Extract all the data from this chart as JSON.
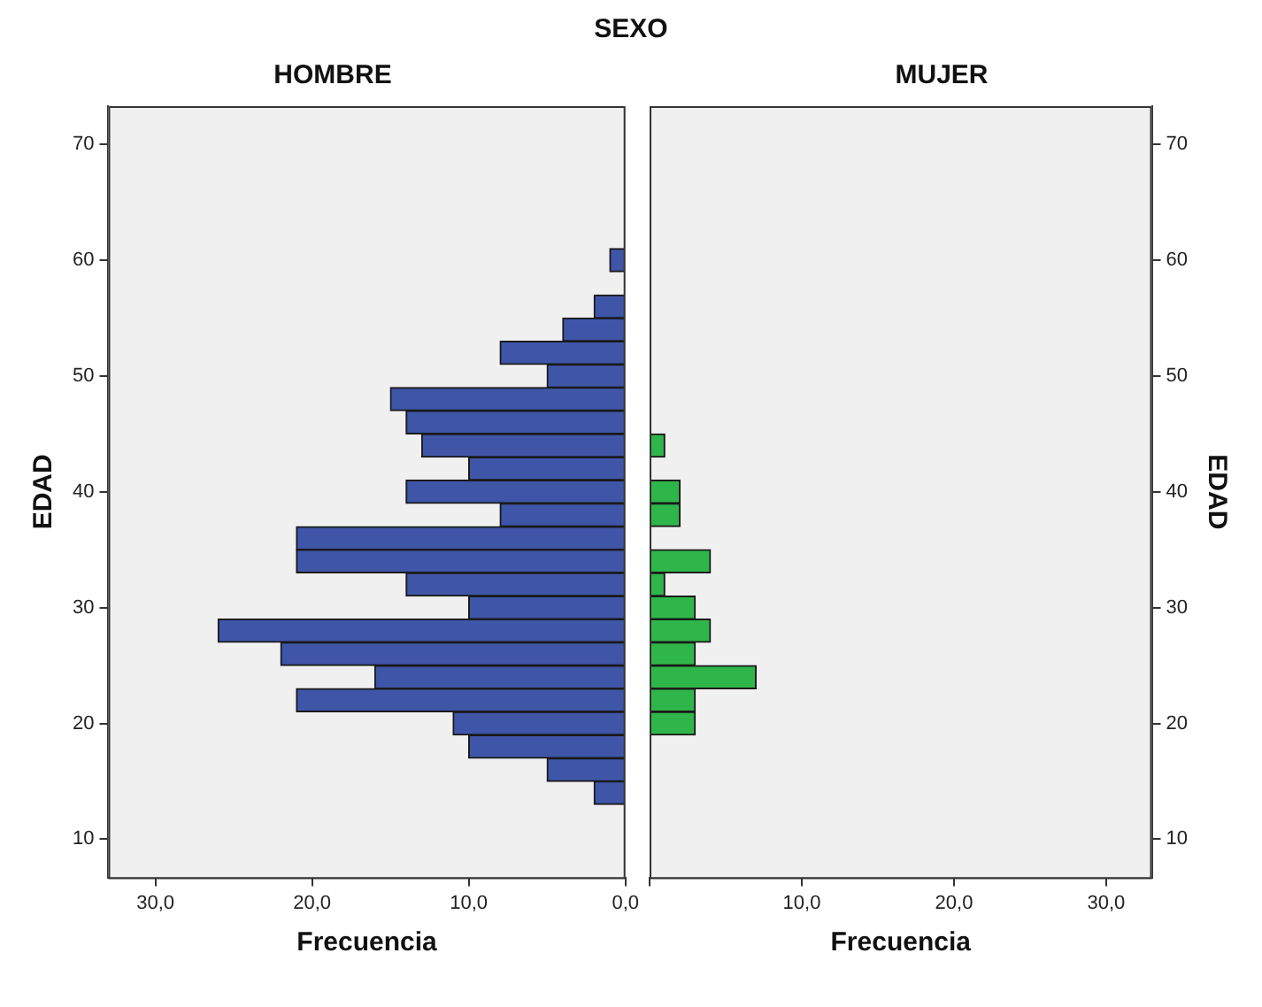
{
  "chart_data": [
    {
      "type": "histogram",
      "title": "HOMBRE",
      "annotations": [
        "SEXO"
      ],
      "orientation": "horizontal",
      "xlabel": "Frecuencia",
      "ylabel": "EDAD",
      "color": "#3f56a8",
      "bins": [
        13,
        15,
        17,
        19,
        21,
        23,
        25,
        27,
        29,
        31,
        33,
        35,
        37,
        39,
        41,
        43,
        45,
        47,
        49,
        51,
        53,
        55,
        57,
        59,
        61
      ],
      "values": [
        2,
        5,
        10,
        11,
        21,
        16,
        22,
        26,
        10,
        14,
        21,
        21,
        8,
        14,
        10,
        13,
        14,
        15,
        5,
        8,
        4,
        2,
        0,
        1
      ],
      "xlim": [
        33,
        0
      ],
      "xticks": [
        {
          "value": 30,
          "label": "30,0"
        },
        {
          "value": 20,
          "label": "20,0"
        },
        {
          "value": 10,
          "label": "10,0"
        },
        {
          "value": 0,
          "label": "0,0"
        }
      ],
      "ylim": [
        6.7,
        73.3
      ],
      "yticks": [
        10,
        20,
        30,
        40,
        50,
        60,
        70
      ],
      "grid": false,
      "legend": false
    },
    {
      "type": "histogram",
      "title": "MUJER",
      "orientation": "horizontal",
      "xlabel": "Frecuencia",
      "ylabel": "EDAD",
      "color": "#2fb64a",
      "bins": [
        13,
        15,
        17,
        19,
        21,
        23,
        25,
        27,
        29,
        31,
        33,
        35,
        37,
        39,
        41,
        43,
        45,
        47,
        49,
        51,
        53,
        55,
        57,
        59,
        61
      ],
      "values": [
        0,
        0,
        0,
        3,
        3,
        7,
        3,
        4,
        3,
        1,
        4,
        0,
        2,
        2,
        0,
        1,
        0,
        0,
        0,
        0,
        0,
        0,
        0,
        0
      ],
      "xlim": [
        0,
        33
      ],
      "xticks": [
        {
          "value": 0,
          "label": null
        },
        {
          "value": 10,
          "label": "10,0"
        },
        {
          "value": 20,
          "label": "20,0"
        },
        {
          "value": 30,
          "label": "30,0"
        }
      ],
      "ylim": [
        6.7,
        73.3
      ],
      "yticks": [
        10,
        20,
        30,
        40,
        50,
        60,
        70
      ],
      "grid": false,
      "legend": false
    }
  ]
}
